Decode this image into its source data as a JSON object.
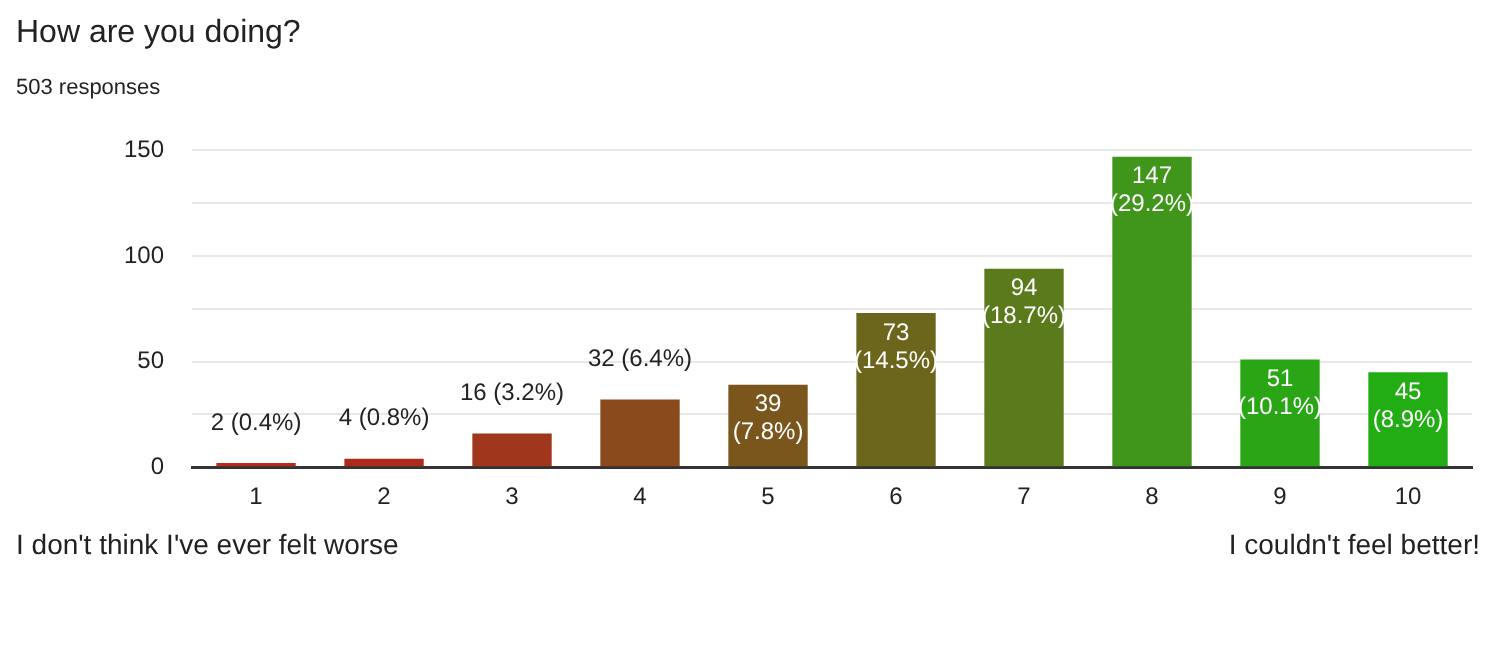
{
  "chart_data": {
    "type": "bar",
    "title": "How are you doing?",
    "subtitle": "503 responses",
    "categories": [
      "1",
      "2",
      "3",
      "4",
      "5",
      "6",
      "7",
      "8",
      "9",
      "10"
    ],
    "values": [
      2,
      4,
      16,
      32,
      39,
      73,
      94,
      147,
      51,
      45
    ],
    "value_labels": [
      "2 (0.4%)",
      "4 (0.8%)",
      "16 (3.2%)",
      "32 (6.4%)",
      "39 (7.8%)",
      "73 (14.5%)",
      "94 (18.7%)",
      "147 (29.2%)",
      "51 (10.1%)",
      "45 (8.9%)"
    ],
    "colors": [
      "#b52a1c",
      "#b02a1c",
      "#a0371c",
      "#8a4a1c",
      "#7a561c",
      "#6b661b",
      "#5a7a1c",
      "#3f961a",
      "#2aa516",
      "#22ad14"
    ],
    "ylim": [
      0,
      150
    ],
    "yticks": [
      0,
      {
        "value": 25,
        "label": null
      },
      50,
      {
        "value": 75,
        "label": null
      },
      100,
      {
        "value": 125,
        "label": null
      },
      150
    ],
    "grid": "y",
    "legend": false,
    "annotations": [
      "I don't think I've ever felt worse",
      "I couldn't feel better!"
    ]
  }
}
